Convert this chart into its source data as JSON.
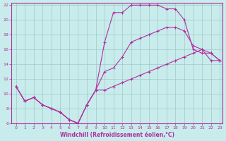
{
  "xlabel": "Windchill (Refroidissement éolien,°C)",
  "bg_color": "#c8ecec",
  "grid_color": "#a0c8c8",
  "line_color": "#b030a0",
  "xlim": [
    -0.5,
    23.3
  ],
  "ylim": [
    6,
    22.3
  ],
  "xticks": [
    0,
    1,
    2,
    3,
    4,
    5,
    6,
    7,
    8,
    9,
    10,
    11,
    12,
    13,
    14,
    15,
    16,
    17,
    18,
    19,
    20,
    21,
    22,
    23
  ],
  "yticks": [
    6,
    8,
    10,
    12,
    14,
    16,
    18,
    20,
    22
  ],
  "line1_x": [
    0,
    1,
    2,
    3,
    4,
    5,
    6,
    7,
    8,
    9,
    10,
    11,
    12,
    13,
    14,
    15,
    16,
    17,
    18,
    19,
    20,
    21,
    22,
    23
  ],
  "line1_y": [
    11,
    9,
    9.5,
    8.5,
    8,
    7.5,
    6.5,
    6,
    8.5,
    10.5,
    17,
    21,
    21,
    22,
    22,
    22,
    22,
    21.5,
    21.5,
    20,
    16,
    15.5,
    15.5,
    14.5
  ],
  "line2_x": [
    0,
    1,
    2,
    3,
    4,
    5,
    6,
    7,
    8,
    9,
    10,
    11,
    12,
    13,
    14,
    15,
    16,
    17,
    18,
    19,
    20,
    21,
    22,
    23
  ],
  "line2_y": [
    11,
    9,
    9.5,
    8.5,
    8,
    7.5,
    6.5,
    6,
    8.5,
    10.5,
    13,
    13.5,
    15,
    17,
    17.5,
    18,
    18.5,
    19,
    19,
    18.5,
    16.5,
    16,
    15.5,
    14.5
  ],
  "line3_x": [
    0,
    1,
    2,
    3,
    4,
    5,
    6,
    7,
    8,
    9,
    10,
    11,
    12,
    13,
    14,
    15,
    16,
    17,
    18,
    19,
    20,
    21,
    22,
    23
  ],
  "line3_y": [
    11,
    9,
    9.5,
    8.5,
    8,
    7.5,
    6.5,
    6,
    8.5,
    10.5,
    10.5,
    11.0,
    11.5,
    12.0,
    12.5,
    13.0,
    13.5,
    14.0,
    14.5,
    15.0,
    15.5,
    16.0,
    14.5,
    14.5
  ]
}
